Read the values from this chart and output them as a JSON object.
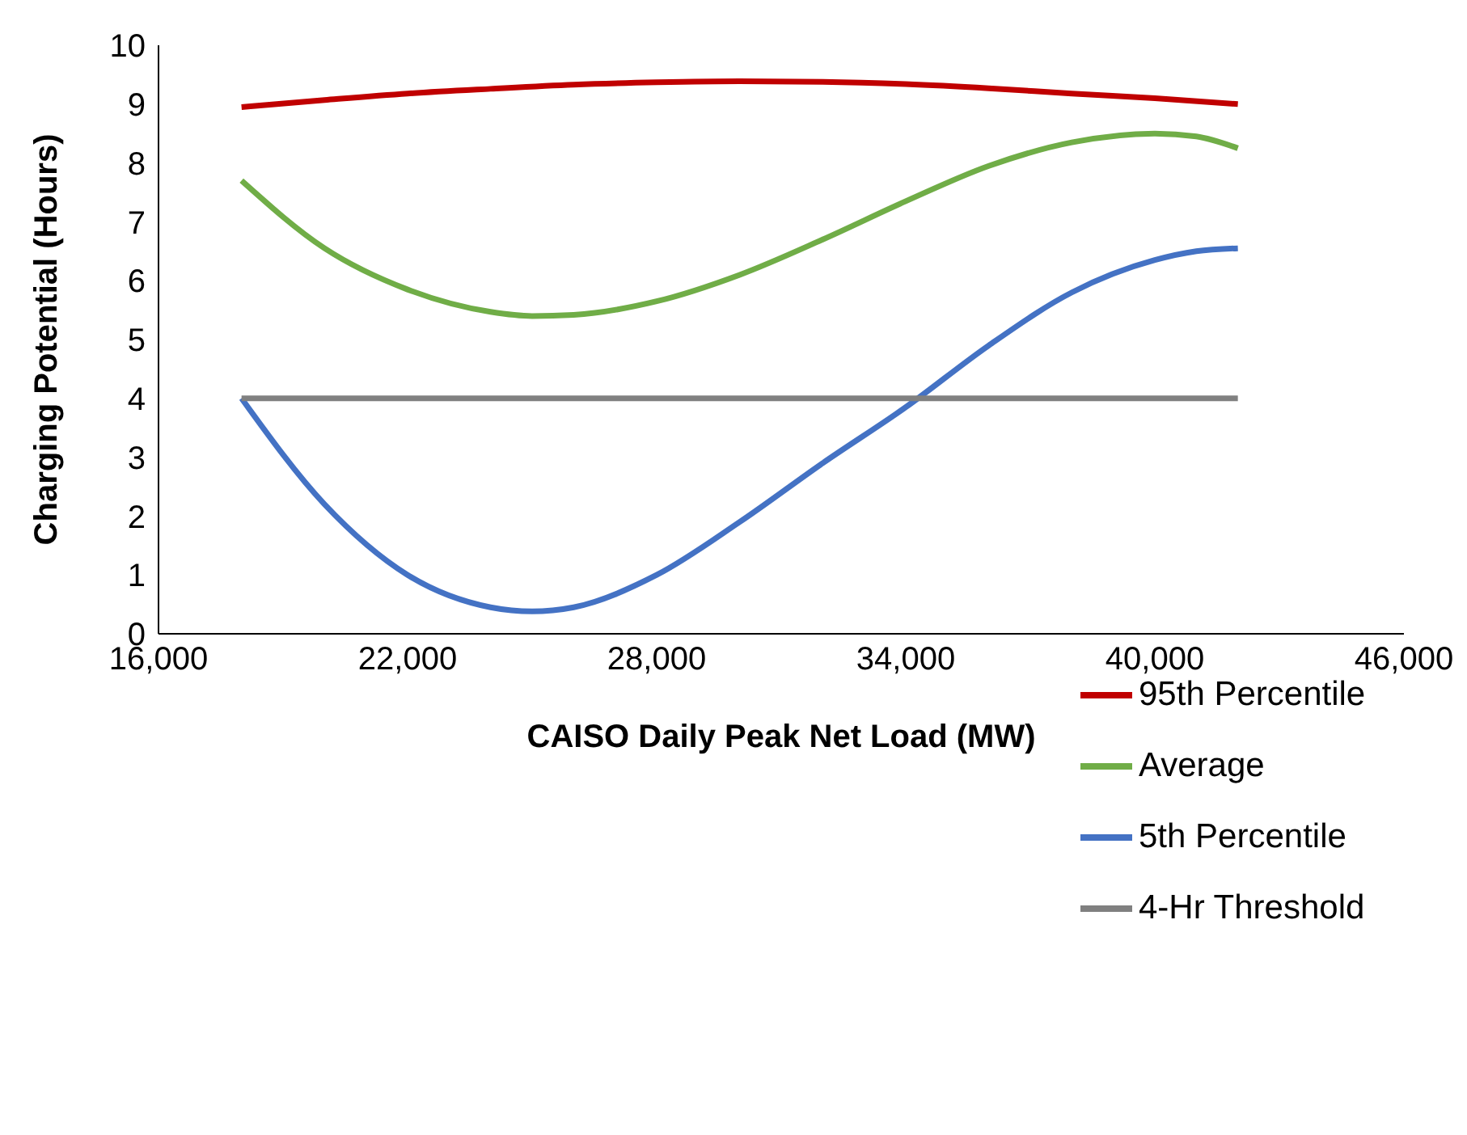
{
  "chart_data": {
    "type": "line",
    "xlabel": "CAISO Daily Peak Net Load (MW)",
    "ylabel": "Charging Potential (Hours)",
    "xlim": [
      16000,
      46000
    ],
    "xticks": [
      {
        "value": 16000,
        "label": "16,000"
      },
      {
        "value": 22000,
        "label": "22,000"
      },
      {
        "value": 28000,
        "label": "28,000"
      },
      {
        "value": 34000,
        "label": "34,000"
      },
      {
        "value": 40000,
        "label": "40,000"
      },
      {
        "value": 46000,
        "label": "46,000"
      }
    ],
    "ylim": [
      0,
      10
    ],
    "yticks": [
      0,
      1,
      2,
      3,
      4,
      5,
      6,
      7,
      8,
      9,
      10
    ],
    "grid": false,
    "legend": "bottom right",
    "marker": "none",
    "line_style": "solid",
    "series": [
      {
        "name": "95th Percentile",
        "color": "#c00000",
        "x": [
          18000,
          20000,
          22000,
          24000,
          26000,
          28000,
          30000,
          32000,
          34000,
          36000,
          38000,
          40000,
          42000
        ],
        "values": [
          8.95,
          9.07,
          9.18,
          9.26,
          9.33,
          9.37,
          9.39,
          9.38,
          9.34,
          9.27,
          9.18,
          9.1,
          9.0
        ]
      },
      {
        "name": "Average",
        "color": "#70ad47",
        "x": [
          18000,
          20000,
          22000,
          24000,
          25000,
          26000,
          28000,
          30000,
          32000,
          34000,
          36000,
          38000,
          40000,
          41000,
          42000
        ],
        "values": [
          7.7,
          6.55,
          5.85,
          5.47,
          5.4,
          5.42,
          5.65,
          6.1,
          6.7,
          7.35,
          7.95,
          8.35,
          8.5,
          8.45,
          8.25
        ]
      },
      {
        "name": "5th Percentile",
        "color": "#4472c4",
        "x": [
          18000,
          20000,
          22000,
          24000,
          25000,
          26000,
          28000,
          30000,
          32000,
          34000,
          36000,
          38000,
          40000,
          41000,
          42000
        ],
        "values": [
          4.0,
          2.2,
          1.0,
          0.45,
          0.38,
          0.45,
          1.0,
          1.9,
          2.9,
          3.85,
          4.9,
          5.8,
          6.35,
          6.5,
          6.55
        ]
      },
      {
        "name": "4-Hr Threshold",
        "color": "#808080",
        "x": [
          18000,
          42000
        ],
        "values": [
          4,
          4
        ]
      }
    ]
  }
}
